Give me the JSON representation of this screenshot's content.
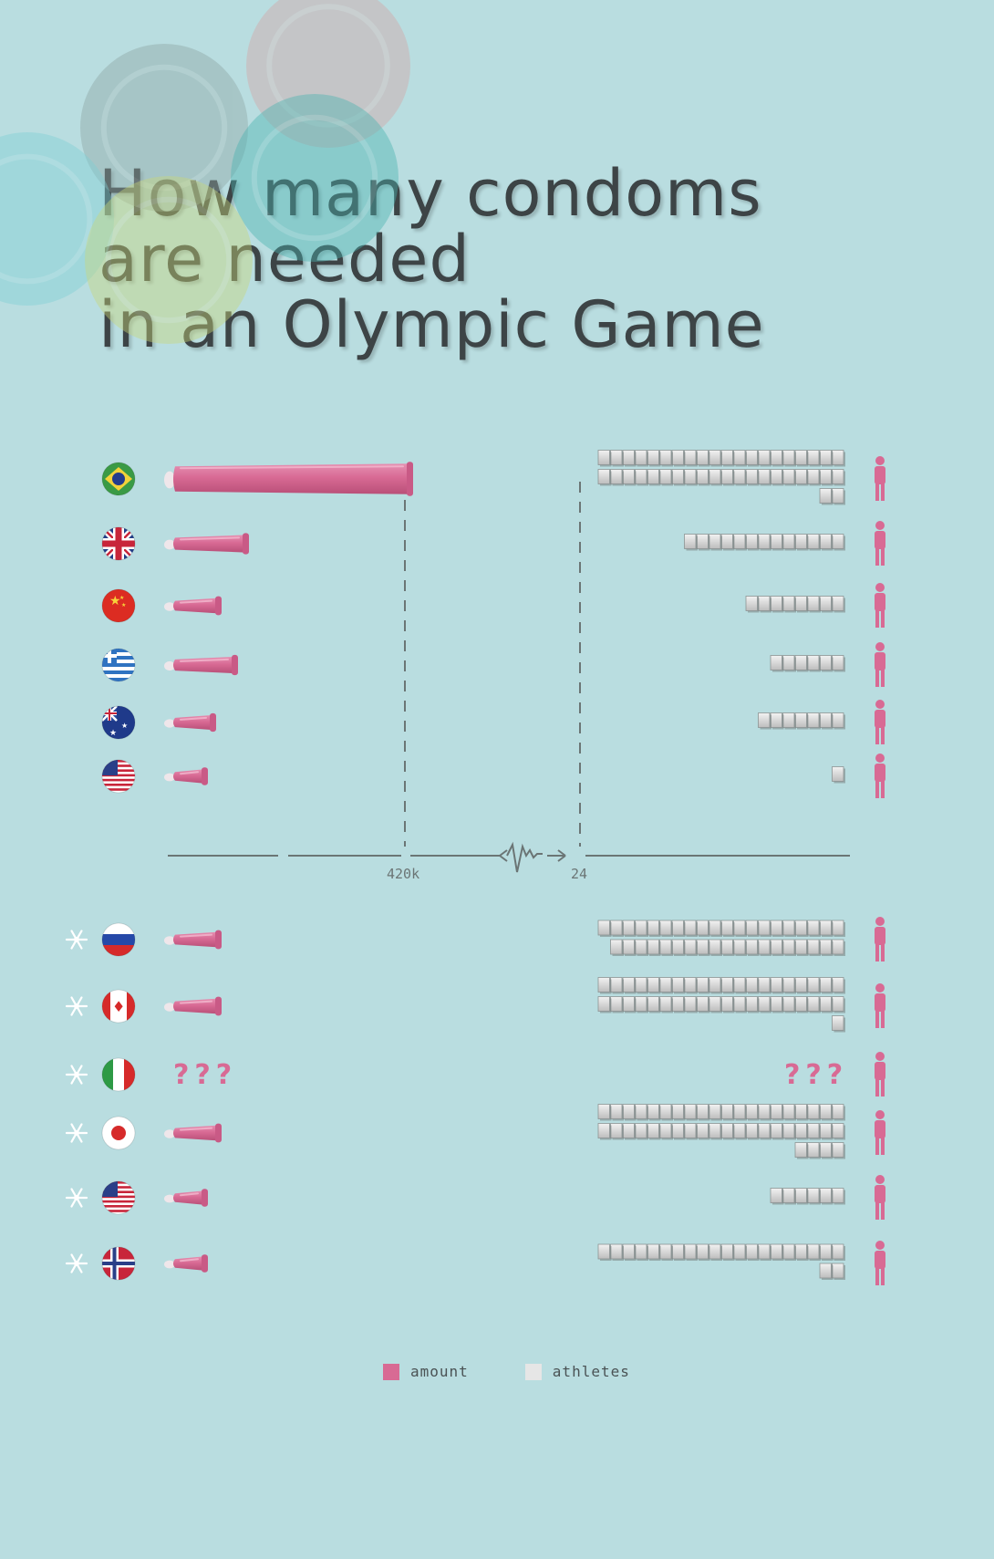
{
  "title_lines": [
    "How many condoms",
    "are needed",
    "in an Olympic Game"
  ],
  "legend": {
    "amount_label": "amount",
    "athletes_label": "athletes"
  },
  "colors": {
    "amount": "#d86a94",
    "athletes": "#e6e6e6",
    "background": "#b9dde0",
    "axis": "#6b7575"
  },
  "chart_data": {
    "type": "bar",
    "axis_break_labels": {
      "amount_max": "420k",
      "athletes_unit": "24"
    },
    "rows": [
      {
        "flag": "brazil-flag",
        "group": "summer",
        "amount": 450000,
        "athletes": 42,
        "amount_label": "",
        "athletes_label": ""
      },
      {
        "flag": "uk-flag",
        "group": "summer",
        "amount": 150000,
        "athletes": 13,
        "amount_label": "",
        "athletes_label": ""
      },
      {
        "flag": "china-flag",
        "group": "summer",
        "amount": 100000,
        "athletes": 8,
        "amount_label": "",
        "athletes_label": ""
      },
      {
        "flag": "greece-flag",
        "group": "summer",
        "amount": 130000,
        "athletes": 6,
        "amount_label": "",
        "athletes_label": ""
      },
      {
        "flag": "australia-flag",
        "group": "summer",
        "amount": 90000,
        "athletes": 7,
        "amount_label": "",
        "athletes_label": ""
      },
      {
        "flag": "usa-flag",
        "group": "summer",
        "amount": 15000,
        "athletes": 1,
        "amount_label": "",
        "athletes_label": ""
      },
      {
        "flag": "russia-flag",
        "group": "winter",
        "amount": 100000,
        "athletes": 39,
        "amount_label": "",
        "athletes_label": ""
      },
      {
        "flag": "canada-flag",
        "group": "winter",
        "amount": 100000,
        "athletes": 41,
        "amount_label": "",
        "athletes_label": ""
      },
      {
        "flag": "italy-flag",
        "group": "winter",
        "amount": null,
        "athletes": null,
        "amount_label": "???",
        "athletes_label": "???"
      },
      {
        "flag": "japan-flag",
        "group": "winter",
        "amount": 100000,
        "athletes": 44,
        "amount_label": "",
        "athletes_label": ""
      },
      {
        "flag": "usa-flag",
        "group": "winter",
        "amount": 30000,
        "athletes": 6,
        "amount_label": "",
        "athletes_label": ""
      },
      {
        "flag": "norway-flag",
        "group": "winter",
        "amount": 35000,
        "athletes": 22,
        "amount_label": "",
        "athletes_label": ""
      }
    ]
  }
}
